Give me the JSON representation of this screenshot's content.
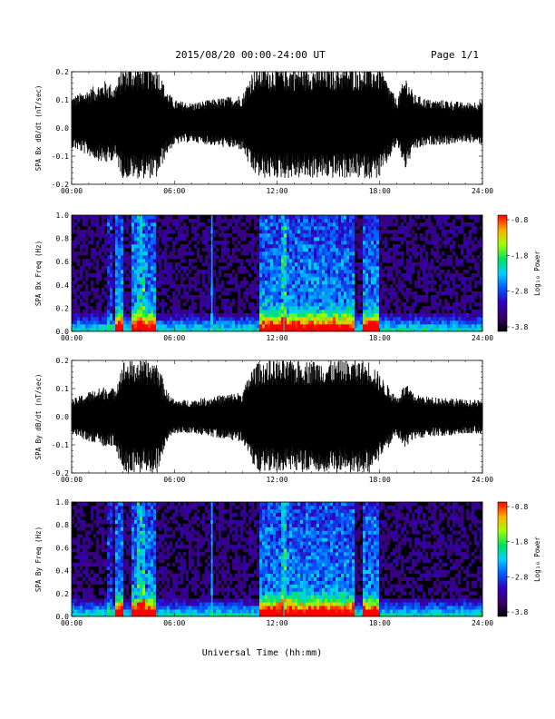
{
  "header": {
    "title": "2015/08/20  00:00-24:00 UT",
    "page": "Page 1/1"
  },
  "xaxis": {
    "title": "Universal Time (hh:mm)",
    "ticks": [
      0,
      6,
      12,
      18,
      24
    ],
    "tick_labels": [
      "00:00",
      "06:00",
      "12:00",
      "18:00",
      "24:00"
    ],
    "range": [
      0,
      24
    ]
  },
  "chart_data": [
    {
      "type": "line",
      "panel": "bx-waveform",
      "ylabel": "SPA Bx dB/dt (nT/sec)",
      "ylim": [
        -0.2,
        0.2
      ],
      "yticks": [
        -0.2,
        -0.1,
        0.0,
        0.1,
        0.2
      ],
      "ytick_labels": [
        "-0.2",
        "-0.1",
        "0.0",
        "0.1",
        "0.2"
      ],
      "x_hours": [
        0,
        1,
        2,
        2.5,
        3,
        3.5,
        4,
        4.5,
        5,
        5.5,
        6,
        7,
        8,
        9,
        10,
        10.5,
        11,
        12,
        13,
        14,
        15,
        16,
        16.5,
        17,
        17.5,
        18,
        19,
        19.5,
        20,
        21,
        22,
        23,
        24
      ],
      "y_amplitude": [
        0.09,
        0.12,
        0.15,
        0.13,
        0.2,
        0.2,
        0.2,
        0.2,
        0.2,
        0.12,
        0.08,
        0.07,
        0.08,
        0.09,
        0.1,
        0.18,
        0.2,
        0.2,
        0.2,
        0.2,
        0.2,
        0.2,
        0.2,
        0.2,
        0.2,
        0.2,
        0.08,
        0.17,
        0.1,
        0.08,
        0.08,
        0.07,
        0.08
      ],
      "baseline": 0.02
    },
    {
      "type": "heatmap",
      "panel": "bx-spectrogram",
      "ylabel": "SPA Bx Freq (Hz)",
      "ylim": [
        0,
        1.0
      ],
      "yticks": [
        0.0,
        0.2,
        0.4,
        0.6,
        0.8,
        1.0
      ],
      "ytick_labels": [
        "0.0",
        "0.2",
        "0.4",
        "0.6",
        "0.8",
        "1.0"
      ],
      "colorbar": {
        "label": "Log₁₀ Power",
        "min": -3.8,
        "max": -0.8,
        "tick_labels": [
          "-0.8",
          "-1.8",
          "-2.8",
          "-3.8"
        ]
      },
      "active_hours": [
        [
          2.5,
          3.0
        ],
        [
          3.5,
          5.0
        ],
        [
          11.0,
          16.5
        ],
        [
          17.0,
          18.0
        ]
      ],
      "spike_hours": [
        2.2,
        3.9,
        4.1,
        8.2,
        12.4
      ],
      "cyan_line_hours": [
        8.2,
        12.4
      ]
    },
    {
      "type": "line",
      "panel": "by-waveform",
      "ylabel": "SPA By dB/dt (nT/sec)",
      "ylim": [
        -0.2,
        0.2
      ],
      "yticks": [
        -0.2,
        -0.1,
        0.0,
        0.1,
        0.2
      ],
      "ytick_labels": [
        "-0.2",
        "-0.1",
        "0.0",
        "0.1",
        "0.2"
      ],
      "x_hours": [
        0,
        1,
        2,
        2.5,
        3,
        3.5,
        4,
        4.5,
        5,
        5.5,
        6,
        7,
        8,
        9,
        10,
        10.5,
        11,
        12,
        13,
        14,
        15,
        16,
        16.5,
        17,
        17.5,
        18,
        19,
        19.5,
        20,
        21,
        22,
        23,
        24
      ],
      "y_amplitude": [
        0.06,
        0.09,
        0.11,
        0.1,
        0.2,
        0.2,
        0.2,
        0.2,
        0.2,
        0.1,
        0.06,
        0.06,
        0.07,
        0.08,
        0.09,
        0.17,
        0.2,
        0.2,
        0.2,
        0.2,
        0.2,
        0.2,
        0.2,
        0.2,
        0.2,
        0.15,
        0.07,
        0.12,
        0.08,
        0.07,
        0.07,
        0.06,
        0.06
      ],
      "baseline": 0.0
    },
    {
      "type": "heatmap",
      "panel": "by-spectrogram",
      "ylabel": "SPA By Freq (Hz)",
      "ylim": [
        0,
        1.0
      ],
      "yticks": [
        0.0,
        0.2,
        0.4,
        0.6,
        0.8,
        1.0
      ],
      "ytick_labels": [
        "0.0",
        "0.2",
        "0.4",
        "0.6",
        "0.8",
        "1.0"
      ],
      "colorbar": {
        "label": "Log₁₀ Power",
        "min": -3.8,
        "max": -0.8,
        "tick_labels": [
          "-0.8",
          "-1.8",
          "-2.8",
          "-3.8"
        ]
      },
      "active_hours": [
        [
          2.5,
          3.0
        ],
        [
          3.5,
          5.0
        ],
        [
          11.0,
          16.5
        ],
        [
          17.0,
          18.0
        ]
      ],
      "spike_hours": [
        2.2,
        3.9,
        4.1,
        8.2,
        12.4
      ],
      "cyan_line_hours": [
        8.2,
        12.4
      ]
    }
  ]
}
